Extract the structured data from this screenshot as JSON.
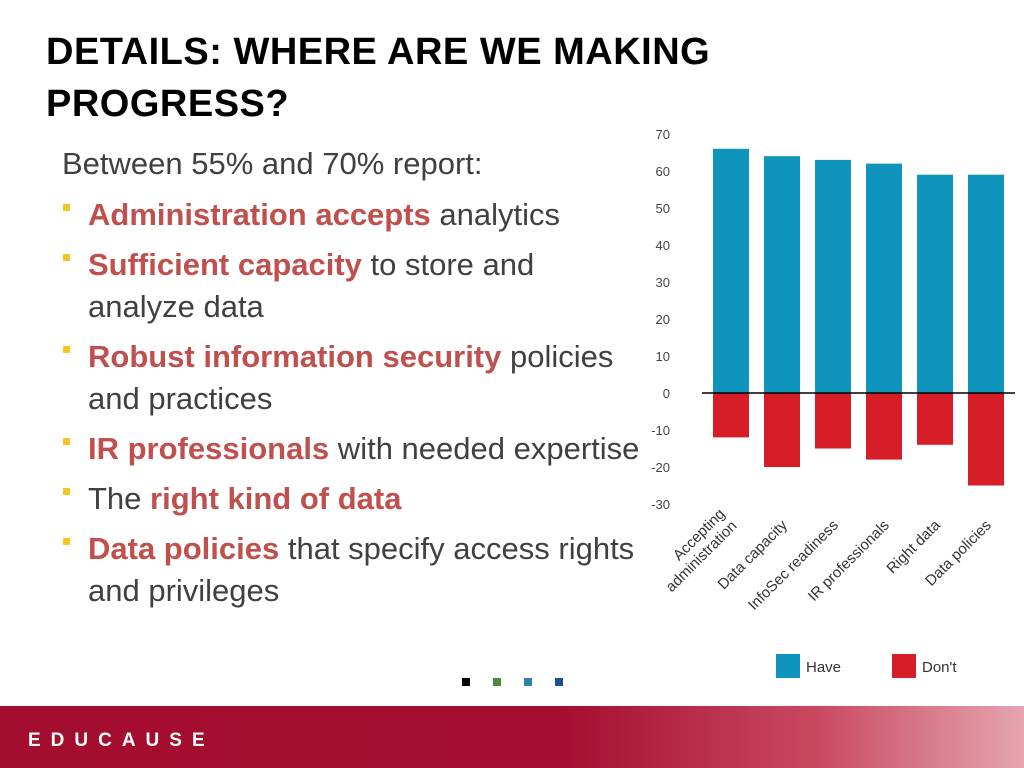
{
  "slide": {
    "title_line1": "DETAILS: WHERE ARE WE MAKING",
    "title_line2": "PROGRESS?",
    "intro": "Between 55% and 70% report:",
    "bullets": [
      {
        "highlight": "Administration accepts",
        "rest": " analytics"
      },
      {
        "highlight": "Sufficient capacity",
        "rest": " to store and analyze data"
      },
      {
        "highlight": "Robust information security",
        "rest": " policies and practices"
      },
      {
        "highlight": "IR professionals",
        "rest": " with needed expertise"
      },
      {
        "pre": "The ",
        "highlight": "right kind of data",
        "rest": ""
      },
      {
        "highlight": "Data policies",
        "rest": " that specify access rights and privileges"
      }
    ],
    "nav_dot_colors": [
      "#000000",
      "#4e8a3e",
      "#2f7fa6",
      "#1f4f8f"
    ],
    "footer_logo": "EDUCAUSE",
    "bullet_color": "#f3c623",
    "highlight_color": "#c0504d"
  },
  "chart_data": {
    "type": "bar",
    "categories": [
      "Accepting administration",
      "Data capacity",
      "InfoSec readiness",
      "IR professionals",
      "Right data",
      "Data policies"
    ],
    "series": [
      {
        "name": "Have",
        "color": "#0f95bb",
        "values": [
          66,
          64,
          63,
          62,
          59,
          59
        ]
      },
      {
        "name": "Don't",
        "color": "#d71e28",
        "values": [
          -12,
          -20,
          -15,
          -18,
          -14,
          -25
        ]
      }
    ],
    "ylim": [
      -30,
      70
    ],
    "yticks": [
      70,
      60,
      50,
      40,
      30,
      20,
      10,
      0,
      -10,
      -20,
      -30
    ],
    "legend": "bottom"
  }
}
